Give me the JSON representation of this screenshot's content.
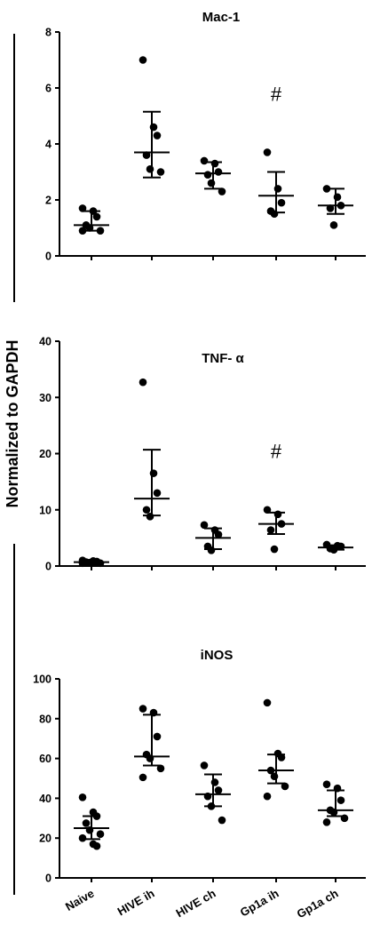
{
  "figure": {
    "ylabel": "Normalized to GAPDH",
    "categories": [
      "Naive",
      "HIVE ih",
      "HIVE ch",
      "Gp1a ih",
      "Gp1a ch"
    ]
  },
  "chart_data": [
    {
      "type": "scatter",
      "title": "Mac-1",
      "categories": [
        "Naive",
        "HIVE ih",
        "HIVE ch",
        "Gp1a ih",
        "Gp1a ch"
      ],
      "ylim": [
        0,
        8
      ],
      "yticks": [
        "0",
        "2",
        "4",
        "6",
        "8"
      ],
      "points": [
        [
          1.7,
          1.6,
          1.4,
          1.1,
          1.0,
          0.9,
          0.9
        ],
        [
          7.0,
          4.6,
          4.3,
          3.6,
          3.1,
          3.0
        ],
        [
          3.4,
          3.3,
          3.0,
          2.9,
          2.6,
          2.3
        ],
        [
          3.7,
          2.4,
          1.9,
          1.6,
          1.5
        ],
        [
          2.4,
          2.1,
          1.8,
          1.7,
          1.1
        ]
      ],
      "median": [
        1.1,
        3.7,
        2.95,
        2.15,
        1.8
      ],
      "err_low": [
        0.9,
        2.8,
        2.4,
        1.55,
        1.5
      ],
      "err_high": [
        1.6,
        5.15,
        3.35,
        3.0,
        2.4
      ],
      "annotations": [
        {
          "category": "Gp1a ih",
          "text": "#",
          "y": 5.8
        }
      ]
    },
    {
      "type": "scatter",
      "title": "TNF- α",
      "categories": [
        "Naive",
        "HIVE ih",
        "HIVE ch",
        "Gp1a ih",
        "Gp1a ch"
      ],
      "ylim": [
        0,
        40
      ],
      "yticks": [
        "0",
        "10",
        "20",
        "30",
        "40"
      ],
      "points": [
        [
          1.0,
          0.9,
          0.8,
          0.7,
          0.6,
          0.5,
          0.5
        ],
        [
          32.7,
          16.5,
          13.0,
          10.0,
          8.8
        ],
        [
          7.3,
          6.4,
          5.6,
          3.5,
          2.8
        ],
        [
          10.0,
          9.2,
          7.5,
          6.4,
          3.0
        ],
        [
          3.8,
          3.6,
          3.5,
          3.1,
          2.9
        ]
      ],
      "median": [
        0.7,
        12.0,
        5.0,
        7.5,
        3.3
      ],
      "err_low": [
        0.3,
        9.0,
        3.0,
        5.7,
        2.9
      ],
      "err_high": [
        1.0,
        20.7,
        6.7,
        9.5,
        3.7
      ],
      "annotations": [
        {
          "category": "Gp1a ih",
          "text": "#",
          "y": 20.5
        }
      ]
    },
    {
      "type": "scatter",
      "title": "iNOS",
      "categories": [
        "Naive",
        "HIVE ih",
        "HIVE ch",
        "Gp1a ih",
        "Gp1a ch"
      ],
      "ylim": [
        0,
        100
      ],
      "yticks": [
        "0",
        "20",
        "40",
        "60",
        "80",
        "100"
      ],
      "points": [
        [
          40.5,
          33.0,
          31.0,
          27.5,
          24.0,
          22.0,
          20.0,
          17.0,
          16.0
        ],
        [
          85.0,
          83.0,
          71.0,
          62.0,
          60.0,
          55.0,
          50.5
        ],
        [
          56.5,
          48.0,
          44.0,
          41.0,
          36.0,
          29.0
        ],
        [
          88.0,
          62.5,
          60.5,
          54.0,
          51.0,
          46.0,
          41.0
        ],
        [
          47.0,
          45.0,
          39.0,
          34.0,
          33.0,
          30.0,
          28.0
        ]
      ],
      "median": [
        25.0,
        61.0,
        42.0,
        54.0,
        34.0
      ],
      "err_low": [
        19.5,
        56.5,
        36.0,
        47.5,
        31.0
      ],
      "err_high": [
        31.0,
        82.0,
        52.0,
        62.0,
        44.0
      ],
      "annotations": []
    }
  ]
}
